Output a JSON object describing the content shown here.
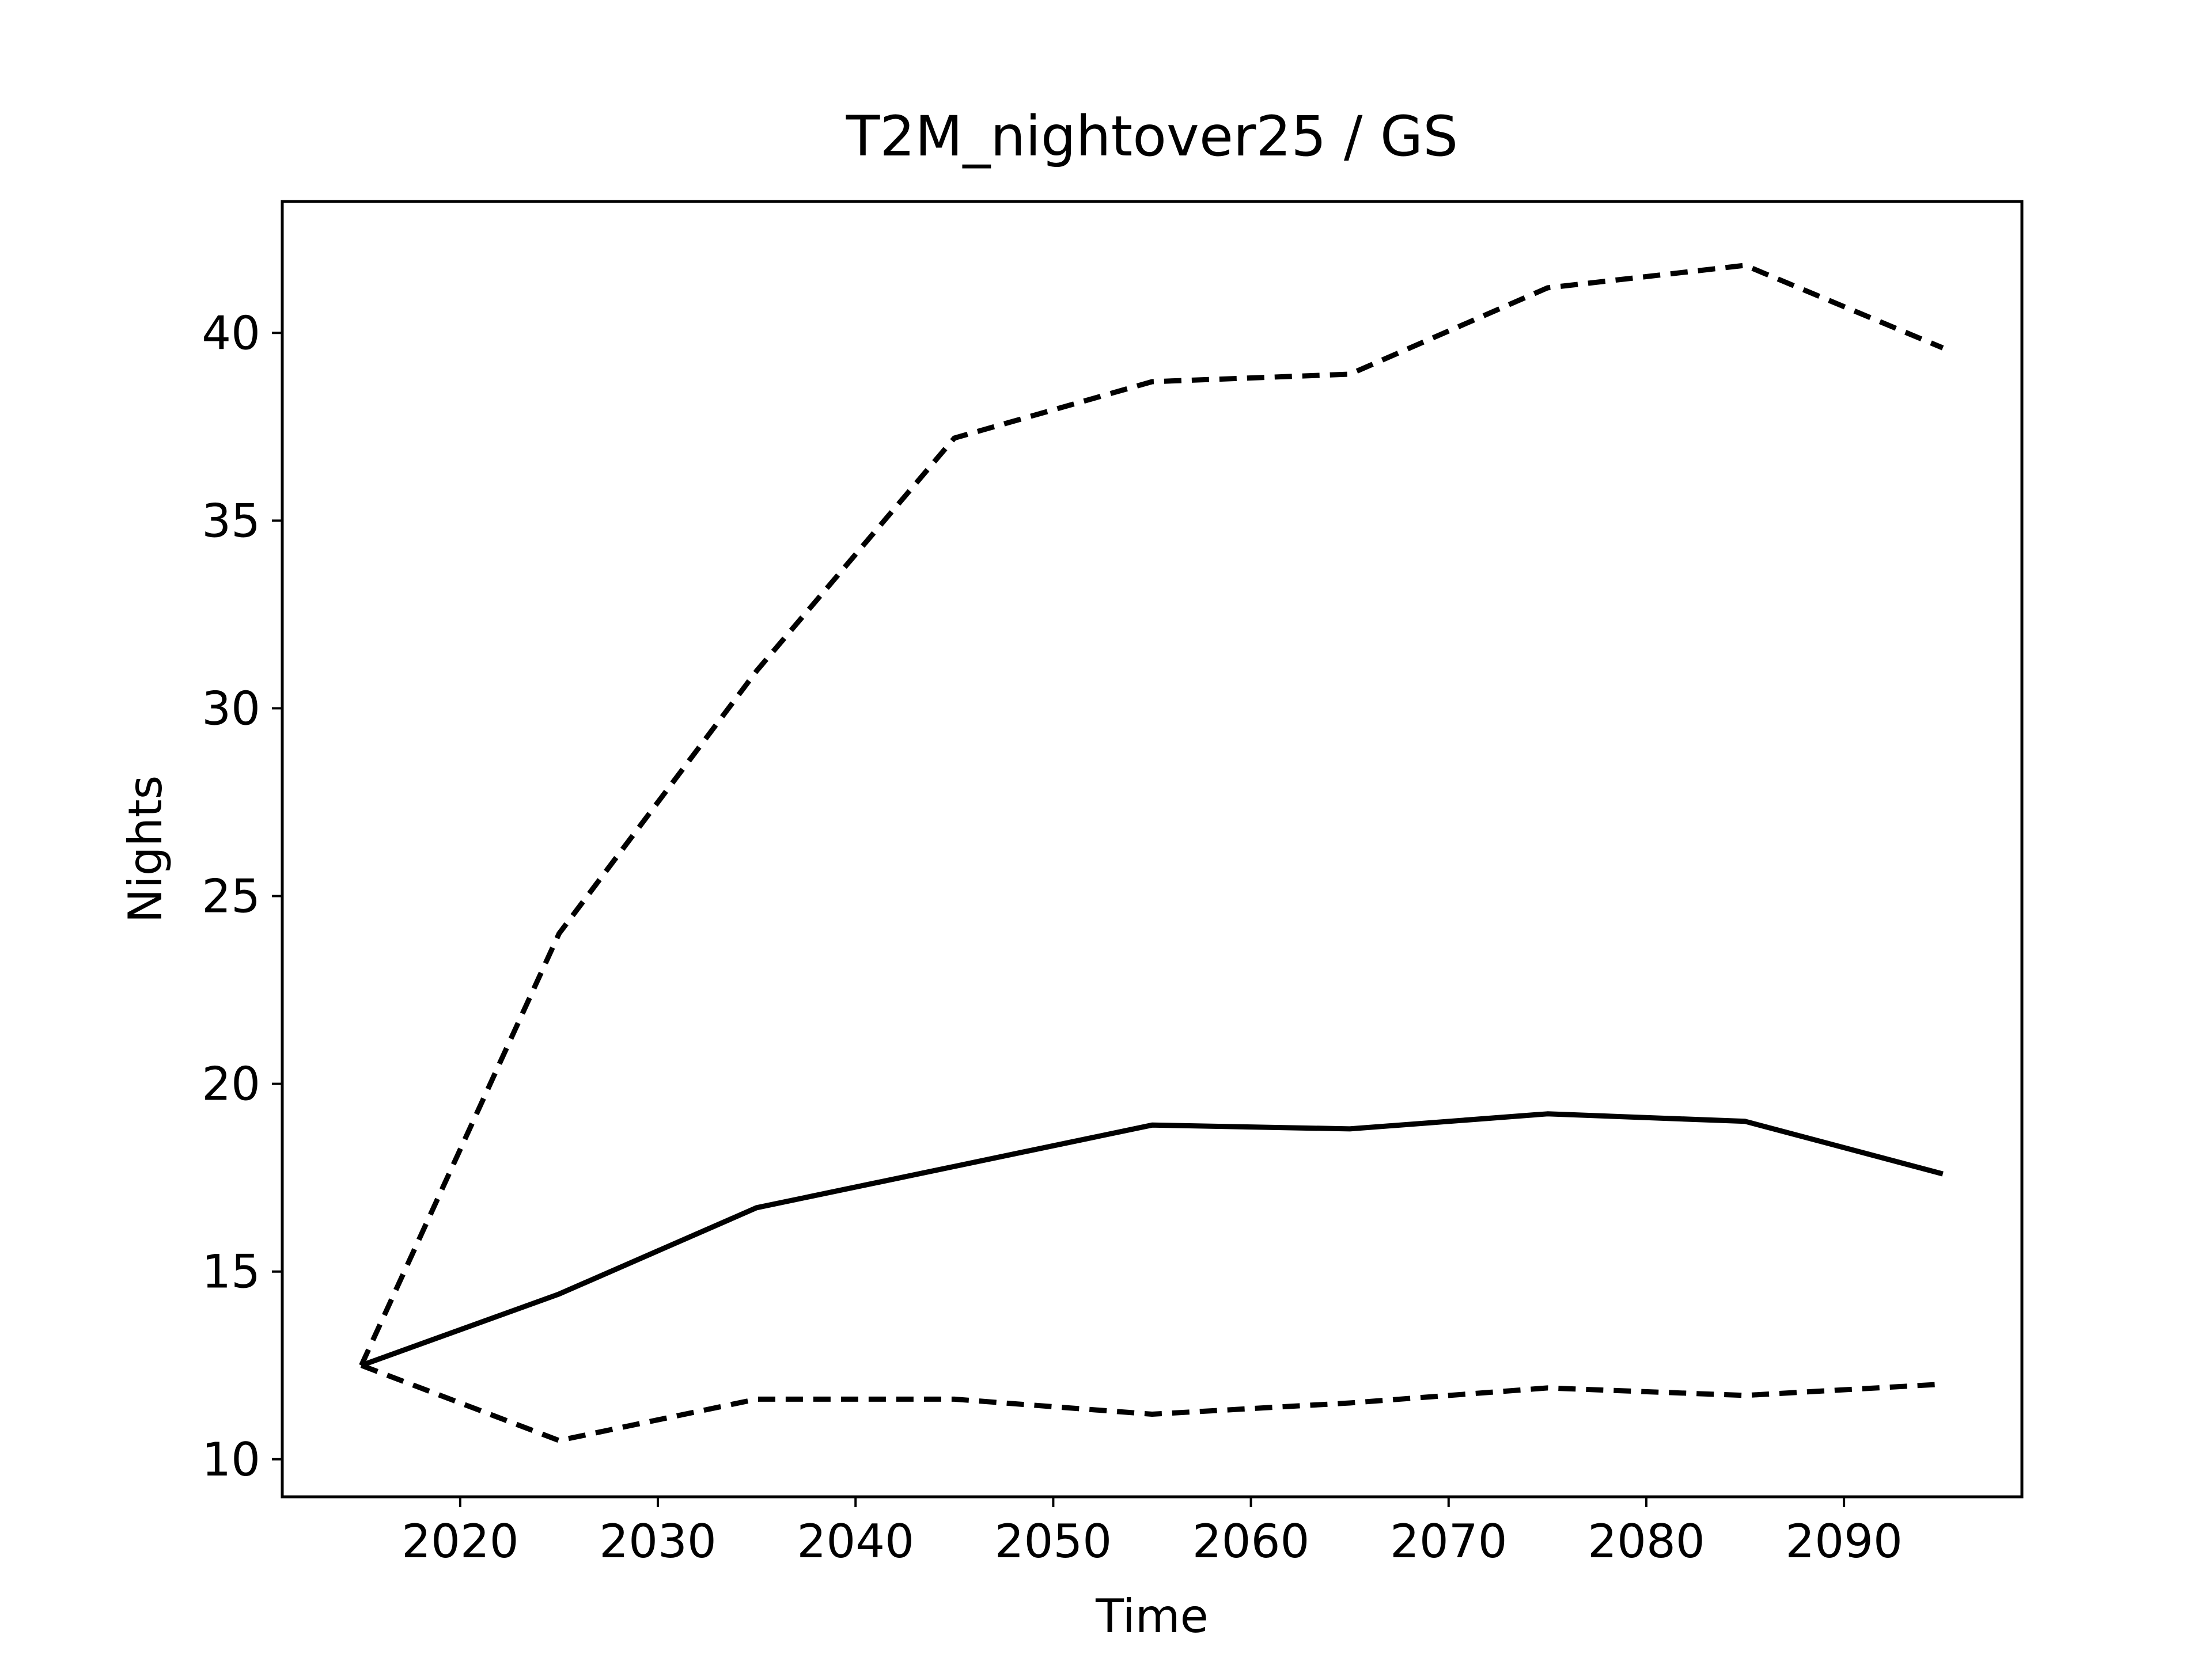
{
  "chart_data": {
    "type": "line",
    "title": "T2M_nightover25 / GS",
    "xlabel": "Time",
    "ylabel": "Nights",
    "xlim": [
      2011,
      2099
    ],
    "ylim": [
      9,
      43.5
    ],
    "xticks": [
      2020,
      2030,
      2040,
      2050,
      2060,
      2070,
      2080,
      2090
    ],
    "yticks": [
      10,
      15,
      20,
      25,
      30,
      35,
      40
    ],
    "grid": false,
    "legend": "none",
    "x": [
      2015,
      2025,
      2035,
      2045,
      2055,
      2065,
      2075,
      2085,
      2095
    ],
    "series": [
      {
        "style": "solid",
        "color": "#000000",
        "values": [
          12.5,
          14.4,
          16.7,
          17.8,
          18.9,
          18.8,
          19.2,
          19.0,
          17.6
        ]
      },
      {
        "style": "dashed",
        "color": "#000000",
        "values": [
          12.5,
          24.0,
          31.0,
          37.2,
          38.7,
          38.9,
          41.2,
          41.8,
          39.6
        ]
      },
      {
        "style": "dashed",
        "color": "#000000",
        "values": [
          12.5,
          10.5,
          11.6,
          11.6,
          11.2,
          11.5,
          11.9,
          11.7,
          12.0
        ]
      }
    ]
  }
}
